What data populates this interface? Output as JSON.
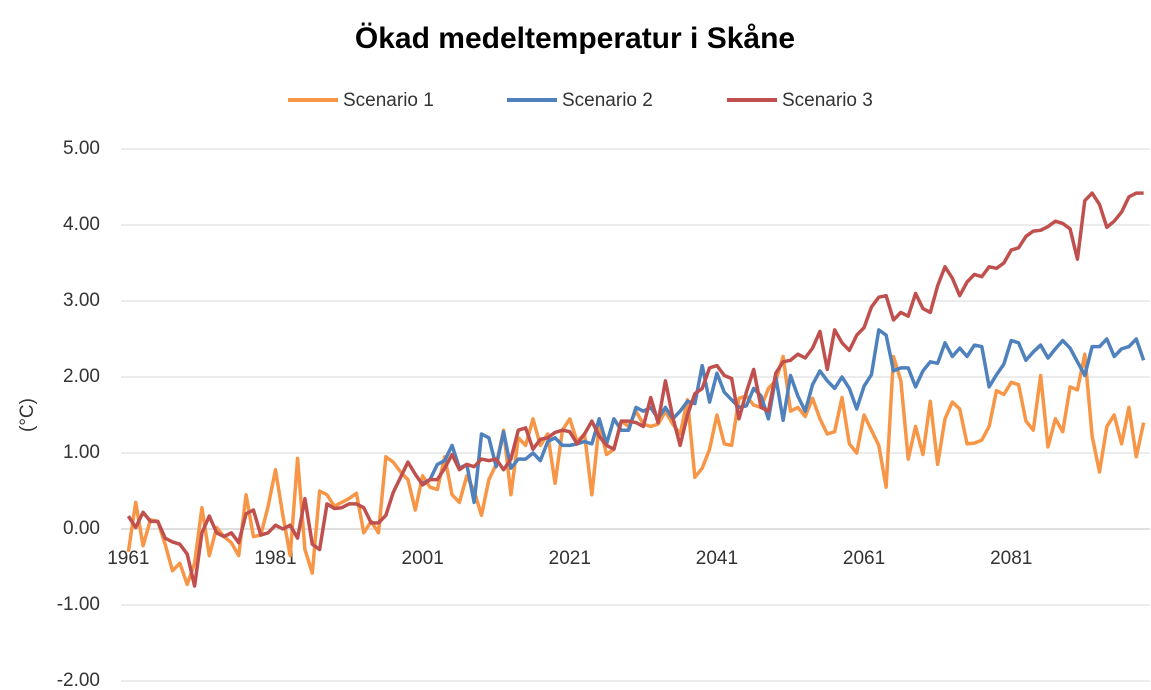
{
  "chart_data": {
    "type": "line",
    "title": "Ökad medeltemperatur i Skåne",
    "y_label": "(°C)",
    "x": [
      1961,
      1962,
      1963,
      1964,
      1965,
      1966,
      1967,
      1968,
      1969,
      1970,
      1971,
      1972,
      1973,
      1974,
      1975,
      1976,
      1977,
      1978,
      1979,
      1980,
      1981,
      1982,
      1983,
      1984,
      1985,
      1986,
      1987,
      1988,
      1989,
      1990,
      1991,
      1992,
      1993,
      1994,
      1995,
      1996,
      1997,
      1998,
      1999,
      2000,
      2001,
      2002,
      2003,
      2004,
      2005,
      2006,
      2007,
      2008,
      2009,
      2010,
      2011,
      2012,
      2013,
      2014,
      2015,
      2016,
      2017,
      2018,
      2019,
      2020,
      2021,
      2022,
      2023,
      2024,
      2025,
      2026,
      2027,
      2028,
      2029,
      2030,
      2031,
      2032,
      2033,
      2034,
      2035,
      2036,
      2037,
      2038,
      2039,
      2040,
      2041,
      2042,
      2043,
      2044,
      2045,
      2046,
      2047,
      2048,
      2049,
      2050,
      2051,
      2052,
      2053,
      2054,
      2055,
      2056,
      2057,
      2058,
      2059,
      2060,
      2061,
      2062,
      2063,
      2064,
      2065,
      2066,
      2067,
      2068,
      2069,
      2070,
      2071,
      2072,
      2073,
      2074,
      2075,
      2076,
      2077,
      2078,
      2079,
      2080,
      2081,
      2082,
      2083,
      2084,
      2085,
      2086,
      2087,
      2088,
      2089,
      2090,
      2091,
      2092,
      2093,
      2094,
      2095,
      2096,
      2097,
      2098,
      2099
    ],
    "series": [
      {
        "name": "Scenario 1",
        "color": "#f79646",
        "values": [
          -0.3,
          0.35,
          -0.22,
          0.12,
          0.1,
          -0.2,
          -0.55,
          -0.45,
          -0.73,
          -0.45,
          0.28,
          -0.35,
          0.02,
          -0.1,
          -0.18,
          -0.35,
          0.45,
          -0.1,
          -0.08,
          0.3,
          0.78,
          0.18,
          -0.35,
          0.93,
          -0.27,
          -0.58,
          0.5,
          0.45,
          0.3,
          0.35,
          0.4,
          0.47,
          -0.05,
          0.1,
          -0.05,
          0.95,
          0.88,
          0.75,
          0.65,
          0.25,
          0.7,
          0.55,
          0.52,
          0.95,
          0.45,
          0.35,
          0.7,
          0.5,
          0.18,
          0.65,
          0.85,
          1.3,
          0.45,
          1.2,
          1.1,
          1.45,
          1.1,
          1.25,
          0.6,
          1.3,
          1.45,
          1.15,
          1.25,
          0.45,
          1.38,
          0.98,
          1.05,
          1.42,
          1.35,
          1.55,
          1.38,
          1.35,
          1.38,
          1.55,
          1.38,
          1.25,
          1.7,
          0.68,
          0.8,
          1.05,
          1.5,
          1.12,
          1.1,
          1.72,
          1.75,
          1.63,
          1.6,
          1.85,
          1.95,
          2.27,
          1.55,
          1.6,
          1.48,
          1.72,
          1.45,
          1.25,
          1.28,
          1.73,
          1.12,
          1.0,
          1.5,
          1.3,
          1.1,
          0.55,
          2.27,
          1.95,
          0.92,
          1.35,
          0.98,
          1.68,
          0.85,
          1.45,
          1.67,
          1.58,
          1.12,
          1.13,
          1.17,
          1.35,
          1.82,
          1.77,
          1.93,
          1.9,
          1.42,
          1.3,
          2.02,
          1.08,
          1.45,
          1.28,
          1.87,
          1.83,
          2.3,
          1.22,
          0.75,
          1.35,
          1.5,
          1.12,
          1.6,
          0.95,
          1.4
        ]
      },
      {
        "name": "Scenario 2",
        "color": "#4f81bd",
        "values": [
          null,
          null,
          null,
          null,
          null,
          null,
          null,
          null,
          null,
          null,
          null,
          null,
          null,
          null,
          null,
          null,
          null,
          null,
          null,
          null,
          null,
          null,
          null,
          null,
          null,
          null,
          null,
          null,
          null,
          null,
          null,
          null,
          null,
          null,
          null,
          null,
          null,
          null,
          null,
          null,
          0.6,
          0.65,
          0.85,
          0.9,
          1.1,
          0.8,
          0.85,
          0.35,
          1.25,
          1.2,
          0.82,
          1.28,
          0.8,
          0.92,
          0.92,
          1.0,
          0.9,
          1.15,
          1.2,
          1.1,
          1.1,
          1.12,
          1.15,
          1.12,
          1.45,
          1.12,
          1.45,
          1.3,
          1.3,
          1.6,
          1.55,
          1.6,
          1.45,
          1.6,
          1.45,
          1.55,
          1.68,
          1.65,
          2.15,
          1.67,
          2.05,
          1.8,
          1.7,
          1.6,
          1.62,
          1.85,
          1.75,
          1.45,
          2.0,
          1.43,
          2.02,
          1.75,
          1.55,
          1.9,
          2.08,
          1.95,
          1.85,
          2.0,
          1.85,
          1.58,
          1.88,
          2.03,
          2.62,
          2.55,
          2.08,
          2.12,
          2.12,
          1.87,
          2.08,
          2.2,
          2.18,
          2.45,
          2.27,
          2.38,
          2.27,
          2.42,
          2.4,
          1.87,
          2.03,
          2.17,
          2.48,
          2.45,
          2.22,
          2.33,
          2.42,
          2.25,
          2.37,
          2.48,
          2.38,
          2.2,
          2.02,
          2.4,
          2.4,
          2.5,
          2.27,
          2.37,
          2.4,
          2.5,
          2.22
        ]
      },
      {
        "name": "Scenario 3",
        "color": "#c0504d",
        "values": [
          0.17,
          0.02,
          0.22,
          0.1,
          0.1,
          -0.12,
          -0.17,
          -0.2,
          -0.33,
          -0.75,
          -0.05,
          0.17,
          -0.05,
          -0.1,
          -0.05,
          -0.18,
          0.2,
          0.25,
          -0.08,
          -0.05,
          0.05,
          0.0,
          0.05,
          -0.12,
          0.4,
          -0.2,
          -0.27,
          0.33,
          0.27,
          0.28,
          0.33,
          0.33,
          0.28,
          0.08,
          0.08,
          0.18,
          0.48,
          0.68,
          0.88,
          0.72,
          0.58,
          0.65,
          0.65,
          0.8,
          0.98,
          0.78,
          0.85,
          0.82,
          0.92,
          0.9,
          0.92,
          0.78,
          0.92,
          1.3,
          1.33,
          1.05,
          1.18,
          1.2,
          1.27,
          1.3,
          1.28,
          1.12,
          1.25,
          1.42,
          1.22,
          1.1,
          1.05,
          1.42,
          1.42,
          1.4,
          1.35,
          1.73,
          1.4,
          1.95,
          1.47,
          1.1,
          1.5,
          1.78,
          1.85,
          2.12,
          2.15,
          2.02,
          1.98,
          1.45,
          1.8,
          2.1,
          1.6,
          1.55,
          2.05,
          2.2,
          2.22,
          2.3,
          2.25,
          2.38,
          2.6,
          2.1,
          2.62,
          2.45,
          2.35,
          2.55,
          2.65,
          2.92,
          3.05,
          3.07,
          2.75,
          2.85,
          2.8,
          3.1,
          2.9,
          2.85,
          3.2,
          3.45,
          3.3,
          3.07,
          3.25,
          3.35,
          3.32,
          3.45,
          3.43,
          3.5,
          3.67,
          3.7,
          3.85,
          3.92,
          3.93,
          3.98,
          4.05,
          4.02,
          3.95,
          3.55,
          4.32,
          4.42,
          4.27,
          3.97,
          4.05,
          4.17,
          4.37,
          4.42,
          4.42
        ]
      }
    ],
    "xlim": [
      1960,
      2100
    ],
    "xticks": [
      1961,
      1981,
      2001,
      2021,
      2041,
      2061,
      2081
    ],
    "ylim": [
      -2,
      5
    ],
    "yticks": [
      {
        "value": -2,
        "label": "-2.00"
      },
      {
        "value": -1,
        "label": "-1.00"
      },
      {
        "value": 0,
        "label": "0.00"
      },
      {
        "value": 1,
        "label": "1.00"
      },
      {
        "value": 2,
        "label": "2.00"
      },
      {
        "value": 3,
        "label": "3.00"
      },
      {
        "value": 4,
        "label": "4.00"
      },
      {
        "value": 5,
        "label": "5.00"
      }
    ],
    "grid": true,
    "legend": "top"
  }
}
